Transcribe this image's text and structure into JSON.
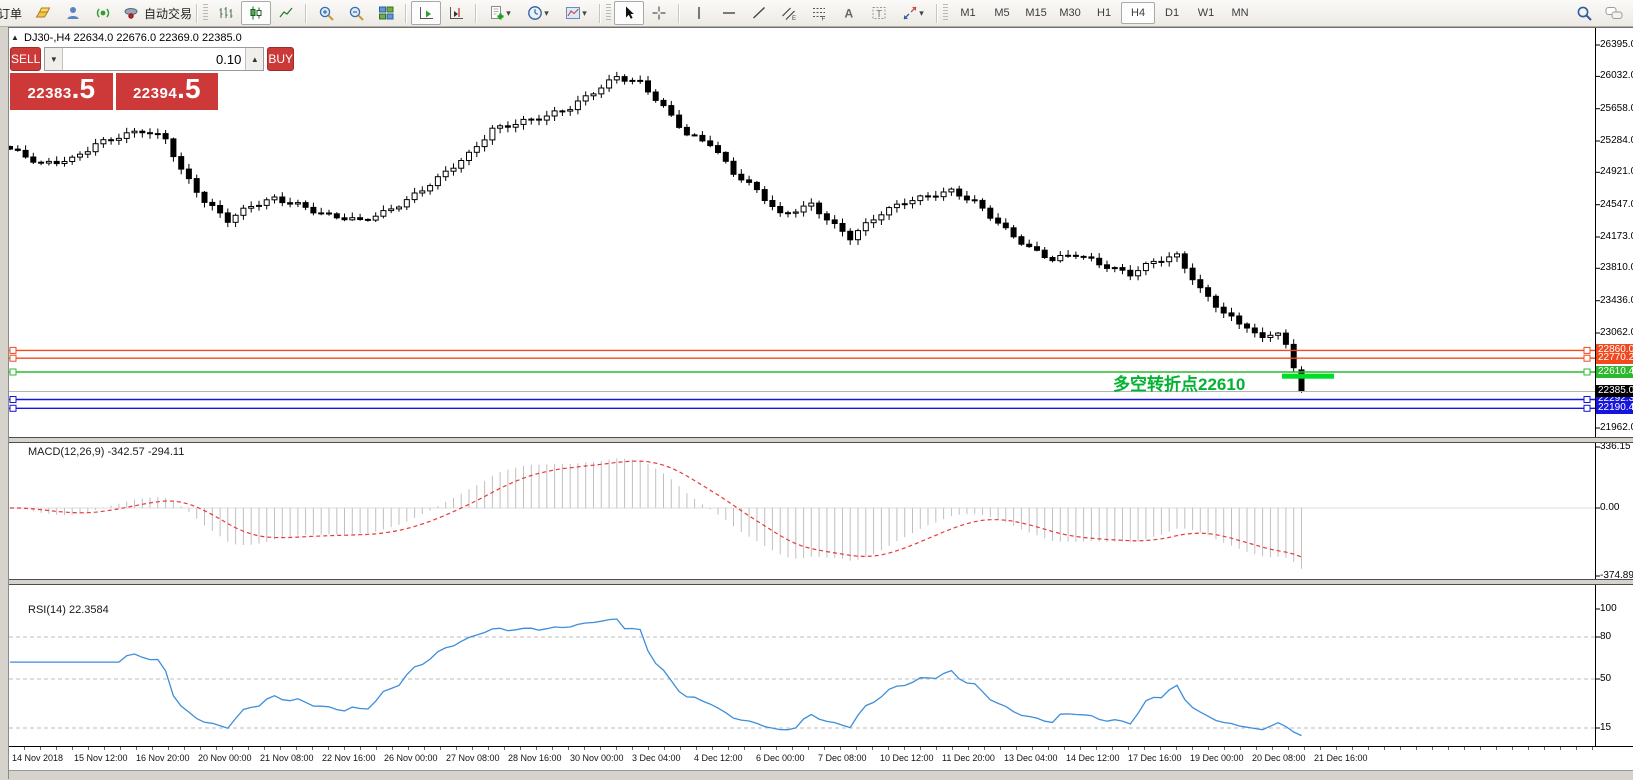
{
  "toolbar": {
    "orders_label": "订单",
    "autotrade_label": "自动交易",
    "timeframes": [
      "M1",
      "M5",
      "M15",
      "M30",
      "H1",
      "H4",
      "D1",
      "W1",
      "MN"
    ],
    "active_timeframe": "H4"
  },
  "chart_header": {
    "collapse_icon": "▲",
    "title": "DJ30-,H4  22634.0 22676.0 22369.0 22385.0"
  },
  "trade_panel": {
    "sell_label": "SELL",
    "buy_label": "BUY",
    "volume_value": "0.10",
    "decrease_glyph": "▼",
    "increase_glyph": "▲",
    "sell_price_int": "22383",
    "sell_price_frac": ".5",
    "buy_price_int": "22394",
    "buy_price_frac": ".5"
  },
  "macd_panel": {
    "label": "MACD(12,26,9) -342.57 -294.11",
    "axis_labels": [
      {
        "value": 336.15,
        "text": "336.15"
      },
      {
        "value": 0,
        "text": "0.00"
      },
      {
        "value": -374.89,
        "text": "-374.89"
      }
    ]
  },
  "rsi_panel": {
    "label": "RSI(14) 22.3584",
    "axis_labels": [
      {
        "value": 100,
        "text": "100"
      },
      {
        "value": 80,
        "text": "80"
      },
      {
        "value": 50,
        "text": "50"
      },
      {
        "value": 15,
        "text": "15"
      }
    ],
    "dashed_levels": [
      80,
      50,
      15
    ]
  },
  "annotation": {
    "text": "多空转折点22610",
    "color": "#00b330",
    "segment_color": "#00dd28",
    "segment_price": 22590
  },
  "colors": {
    "trade_red": "#cd3838",
    "level_orange": "#f2481d",
    "level_green": "#2eb82e",
    "level_blue": "#1515dd",
    "bid_line_gray": "#b4b4b4",
    "macd_hist": "#bfbfbf",
    "macd_signal": "#e83a3a",
    "rsi_line": "#3d8edb"
  },
  "chart_data": {
    "type": "candlestick",
    "symbol": "DJ30-",
    "timeframe": "H4",
    "title": "DJ30-,H4 22634.0 22676.0 22369.0 22385.0",
    "last_bar_ohlc": {
      "open": 22634.0,
      "high": 22676.0,
      "low": 22369.0,
      "close": 22385.0
    },
    "bid": 22383.5,
    "ask": 22394.5,
    "price_range": [
      21962.0,
      26395.0
    ],
    "y_ticks": [
      {
        "value": 26395.0,
        "text": "26395.0"
      },
      {
        "value": 26032.0,
        "text": "26032.0"
      },
      {
        "value": 25658.0,
        "text": "25658.0"
      },
      {
        "value": 25284.0,
        "text": "25284.0"
      },
      {
        "value": 24921.0,
        "text": "24921.0"
      },
      {
        "value": 24547.0,
        "text": "24547.0"
      },
      {
        "value": 24173.0,
        "text": "24173.0"
      },
      {
        "value": 23810.0,
        "text": "23810.0"
      },
      {
        "value": 23436.0,
        "text": "23436.0"
      },
      {
        "value": 23062.0,
        "text": "23062.0"
      },
      {
        "value": 21962.0,
        "text": "21962.0"
      }
    ],
    "x_labels": [
      "14 Nov 2018",
      "15 Nov 12:00",
      "16 Nov 20:00",
      "20 Nov 00:00",
      "21 Nov 08:00",
      "22 Nov 16:00",
      "26 Nov 00:00",
      "27 Nov 08:00",
      "28 Nov 16:00",
      "30 Nov 00:00",
      "3 Dec 04:00",
      "4 Dec 12:00",
      "6 Dec 00:00",
      "7 Dec 08:00",
      "10 Dec 12:00",
      "11 Dec 20:00",
      "13 Dec 04:00",
      "14 Dec 12:00",
      "17 Dec 16:00",
      "19 Dec 00:00",
      "20 Dec 08:00",
      "21 Dec 16:00"
    ],
    "horizontal_levels": [
      {
        "value": 22860.0,
        "label": "22860.0",
        "color": "#f2481d"
      },
      {
        "value": 22770.2,
        "label": "22770.2",
        "color": "#f2481d"
      },
      {
        "value": 22610.4,
        "label": "22610.4",
        "color": "#2eb82e"
      },
      {
        "value": 22292.3,
        "label": "22292.3",
        "color": "#1515dd"
      },
      {
        "value": 22190.4,
        "label": "22190.4",
        "color": "#1515dd"
      }
    ],
    "bid_marker": {
      "value": 22385.0,
      "label": "22385.0"
    },
    "bars_total": 167,
    "close_waypoints": [
      [
        0,
        25190
      ],
      [
        4,
        25000
      ],
      [
        8,
        25080
      ],
      [
        11,
        25260
      ],
      [
        14,
        25330
      ],
      [
        17,
        25390
      ],
      [
        20,
        25310
      ],
      [
        22,
        24960
      ],
      [
        25,
        24600
      ],
      [
        28,
        24360
      ],
      [
        31,
        24520
      ],
      [
        34,
        24620
      ],
      [
        37,
        24560
      ],
      [
        41,
        24410
      ],
      [
        45,
        24350
      ],
      [
        48,
        24460
      ],
      [
        51,
        24610
      ],
      [
        55,
        24840
      ],
      [
        59,
        25120
      ],
      [
        62,
        25430
      ],
      [
        65,
        25500
      ],
      [
        69,
        25560
      ],
      [
        72,
        25660
      ],
      [
        75,
        25860
      ],
      [
        78,
        26040
      ],
      [
        81,
        25950
      ],
      [
        83,
        25760
      ],
      [
        87,
        25360
      ],
      [
        90,
        25270
      ],
      [
        93,
        24920
      ],
      [
        96,
        24700
      ],
      [
        99,
        24420
      ],
      [
        103,
        24560
      ],
      [
        106,
        24310
      ],
      [
        108,
        24160
      ],
      [
        112,
        24440
      ],
      [
        115,
        24590
      ],
      [
        118,
        24660
      ],
      [
        121,
        24700
      ],
      [
        124,
        24560
      ],
      [
        128,
        24260
      ],
      [
        131,
        24060
      ],
      [
        134,
        23910
      ],
      [
        137,
        23960
      ],
      [
        140,
        23860
      ],
      [
        144,
        23760
      ],
      [
        147,
        23890
      ],
      [
        150,
        23940
      ],
      [
        153,
        23560
      ],
      [
        156,
        23310
      ],
      [
        159,
        23120
      ],
      [
        161,
        23010
      ],
      [
        163,
        23060
      ],
      [
        164,
        22930
      ],
      [
        165,
        22660
      ],
      [
        166,
        22385
      ]
    ],
    "indicators": [
      {
        "name": "MACD",
        "params": [
          12,
          26,
          9
        ],
        "current_values": [
          -342.57,
          -294.11
        ],
        "axis_range": [
          -374.89,
          336.15
        ]
      },
      {
        "name": "RSI",
        "params": [
          14
        ],
        "current_value": 22.3584,
        "levels": [
          80,
          50,
          15
        ],
        "axis_range": [
          0,
          100
        ]
      }
    ]
  }
}
